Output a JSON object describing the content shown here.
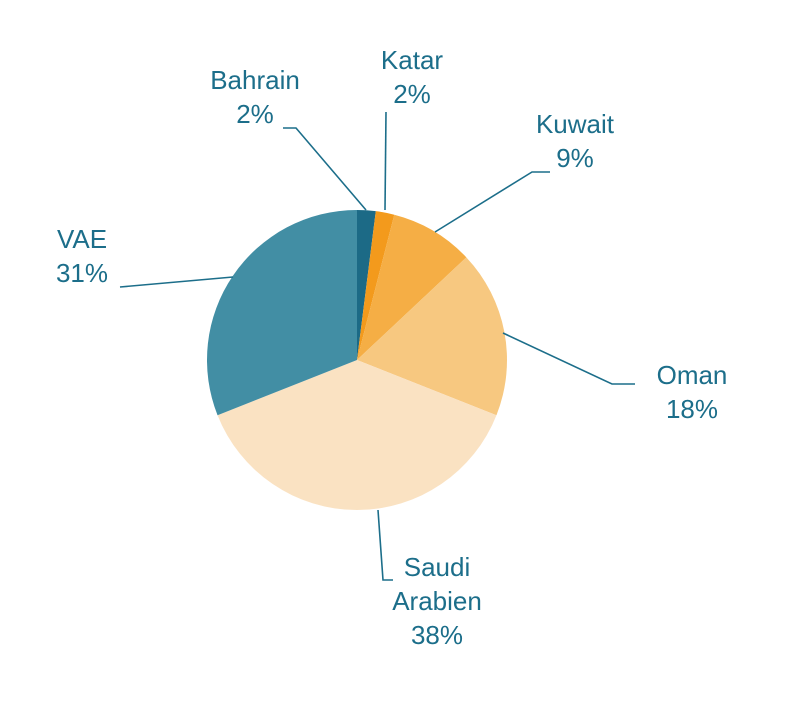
{
  "chart_data": {
    "type": "pie",
    "categories": [
      "Bahrain",
      "Katar",
      "Kuwait",
      "Oman",
      "Saudi Arabien",
      "VAE"
    ],
    "values": [
      2,
      2,
      9,
      18,
      38,
      31
    ],
    "value_labels": [
      "2%",
      "2%",
      "9%",
      "18%",
      "38%",
      "31%"
    ],
    "colors": [
      "#1c6a86",
      "#f39a1c",
      "#f5ae45",
      "#f7c880",
      "#fae2c2",
      "#428ea4"
    ]
  }
}
